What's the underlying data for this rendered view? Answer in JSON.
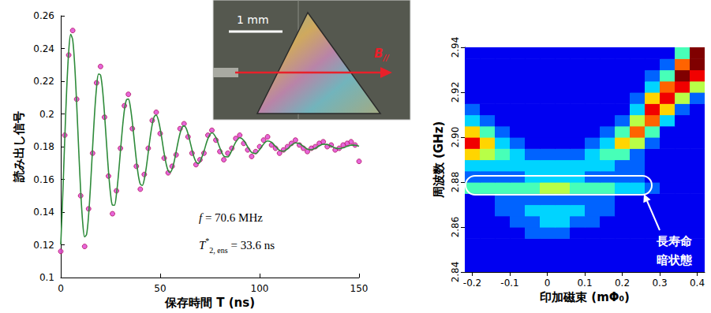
{
  "chart_data": [
    {
      "type": "line",
      "x_label": "保存時間 T (ns)",
      "y_label": "読み出し信号",
      "xlim": [
        0,
        150
      ],
      "xticks": [
        0,
        50,
        100,
        150
      ],
      "ylim": [
        0.1,
        0.26
      ],
      "yticks": [
        0.1,
        0.12,
        0.14,
        0.16,
        0.18,
        0.2,
        0.22,
        0.24,
        0.26
      ],
      "grid": false,
      "annotations": [
        {
          "parts": [
            {
              "text": "f",
              "style": "italic"
            },
            {
              "text": " = 70.6 MHz"
            }
          ]
        },
        {
          "parts": [
            {
              "text": "T",
              "style": "italic"
            },
            {
              "text": "*",
              "style": "sup"
            },
            {
              "text": "2, ens",
              "style": "sub"
            },
            {
              "text": " = 33.6 ns"
            }
          ]
        }
      ],
      "series": [
        {
          "type": "scatter",
          "color": "#e040d0",
          "marker": "circle",
          "x": [
            0,
            2,
            4,
            6,
            8,
            10,
            12,
            14,
            16,
            18,
            20,
            22,
            24,
            26,
            28,
            30,
            32,
            34,
            36,
            38,
            40,
            42,
            44,
            46,
            48,
            50,
            52,
            54,
            56,
            58,
            60,
            62,
            64,
            66,
            68,
            70,
            72,
            74,
            76,
            78,
            80,
            82,
            84,
            86,
            88,
            90,
            92,
            94,
            96,
            98,
            100,
            102,
            104,
            106,
            108,
            110,
            112,
            114,
            116,
            118,
            120,
            122,
            124,
            126,
            128,
            130,
            132,
            134,
            136,
            138,
            140,
            142,
            144,
            146,
            148,
            150
          ],
          "values": [
            0.116,
            0.187,
            0.236,
            0.251,
            0.209,
            0.15,
            0.119,
            0.142,
            0.176,
            0.219,
            0.229,
            0.198,
            0.162,
            0.139,
            0.153,
            0.179,
            0.205,
            0.212,
            0.191,
            0.168,
            0.154,
            0.163,
            0.179,
            0.196,
            0.201,
            0.188,
            0.173,
            0.164,
            0.168,
            0.175,
            0.191,
            0.194,
            0.186,
            0.176,
            0.169,
            0.172,
            0.176,
            0.187,
            0.19,
            0.184,
            0.177,
            0.172,
            0.176,
            0.179,
            0.185,
            0.187,
            0.182,
            0.178,
            0.174,
            0.177,
            0.18,
            0.184,
            0.186,
            0.181,
            0.179,
            0.176,
            0.178,
            0.18,
            0.182,
            0.184,
            0.181,
            0.179,
            0.177,
            0.179,
            0.18,
            0.182,
            0.183,
            0.18,
            0.181,
            0.178,
            0.179,
            0.181,
            0.182,
            0.183,
            0.181,
            0.171
          ]
        },
        {
          "type": "line",
          "color": "#2e8b3a",
          "line_style": "solid",
          "x": [
            0,
            1,
            2,
            3,
            4,
            5,
            6,
            7,
            8,
            9,
            10,
            11,
            12,
            13,
            14,
            15,
            16,
            17,
            18,
            19,
            20,
            21,
            22,
            23,
            24,
            25,
            26,
            27,
            28,
            29,
            30,
            31,
            32,
            33,
            34,
            35,
            36,
            37,
            38,
            39,
            40,
            41,
            42,
            43,
            44,
            45,
            46,
            47,
            48,
            49,
            50,
            51,
            52,
            53,
            54,
            55,
            56,
            57,
            58,
            59,
            60,
            61,
            62,
            63,
            64,
            65,
            66,
            67,
            68,
            69,
            70,
            72,
            74,
            76,
            78,
            80,
            82,
            84,
            86,
            88,
            90,
            92,
            94,
            96,
            98,
            100,
            102,
            104,
            106,
            108,
            110,
            112,
            114,
            116,
            118,
            120,
            122,
            124,
            126,
            128,
            130,
            132,
            134,
            136,
            138,
            140,
            142,
            144,
            146,
            148,
            150
          ],
          "values": [
            0.1202,
            0.1503,
            0.1843,
            0.2155,
            0.2382,
            0.2486,
            0.2454,
            0.23,
            0.2061,
            0.1788,
            0.1532,
            0.1341,
            0.1248,
            0.1264,
            0.1381,
            0.157,
            0.1792,
            0.2002,
            0.2162,
            0.2244,
            0.2238,
            0.215,
            0.2,
            0.1821,
            0.1649,
            0.1515,
            0.1443,
            0.1442,
            0.1509,
            0.1627,
            0.1771,
            0.1911,
            0.2023,
            0.2086,
            0.2091,
            0.2042,
            0.1949,
            0.1834,
            0.1719,
            0.1625,
            0.1571,
            0.1563,
            0.16,
            0.1672,
            0.1765,
            0.1859,
            0.1936,
            0.1983,
            0.1993,
            0.1966,
            0.1909,
            0.1835,
            0.1758,
            0.1695,
            0.1653,
            0.1643,
            0.1663,
            0.1707,
            0.1767,
            0.1829,
            0.1882,
            0.1917,
            0.1927,
            0.1914,
            0.1879,
            0.1831,
            0.1781,
            0.1736,
            0.1708,
            0.1697,
            0.1707,
            0.1772,
            0.1849,
            0.1884,
            0.1856,
            0.1793,
            0.1742,
            0.1737,
            0.1777,
            0.1828,
            0.1854,
            0.1839,
            0.1799,
            0.1764,
            0.1758,
            0.1782,
            0.1816,
            0.1835,
            0.1827,
            0.1801,
            0.1778,
            0.1772,
            0.1786,
            0.1809,
            0.1823,
            0.1819,
            0.1802,
            0.1786,
            0.1781,
            0.179,
            0.1805,
            0.1815,
            0.1813,
            0.1803,
            0.1792,
            0.1788,
            0.1793,
            0.1802,
            0.1809,
            0.1809,
            0.1802
          ]
        }
      ]
    },
    {
      "type": "heatmap",
      "x_label": "印加磁束 (mΦ₀)",
      "y_label": "周波数 (GHz)",
      "xlim": [
        -0.22,
        0.42
      ],
      "xticks": [
        -0.2,
        -0.1,
        0,
        0.1,
        0.2,
        0.3,
        0.4
      ],
      "ylim": [
        2.84,
        2.94
      ],
      "yticks": [
        2.84,
        2.86,
        2.88,
        {
          "value": 2.9,
          "label": "2.90"
        },
        2.92,
        2.94
      ],
      "grid": false,
      "annotations": [
        {
          "text": "長寿命\n暗状態"
        }
      ],
      "x": [
        -0.2,
        -0.16,
        -0.12,
        -0.08,
        -0.04,
        0,
        0.04,
        0.08,
        0.12,
        0.16,
        0.2,
        0.24,
        0.28,
        0.32,
        0.36,
        0.4
      ],
      "y": [
        2.8425,
        2.8475,
        2.8525,
        2.8575,
        2.8625,
        2.8675,
        2.8725,
        2.8775,
        2.8825,
        2.8875,
        2.8925,
        2.8975,
        2.9025,
        2.9075,
        2.9125,
        2.9175,
        2.9225,
        2.9275,
        2.9325,
        2.9375
      ],
      "cells": [
        [
          1,
          1,
          1,
          1,
          1,
          1,
          1,
          1,
          1,
          1,
          1,
          1,
          1,
          1,
          1,
          1
        ],
        [
          1,
          1,
          1,
          1,
          1,
          1,
          1,
          1,
          1,
          1,
          1,
          1,
          1,
          1,
          1,
          1
        ],
        [
          1,
          1,
          1,
          1,
          1,
          1,
          1,
          1,
          1,
          1,
          1,
          1,
          1,
          1,
          1,
          1
        ],
        [
          1,
          1,
          1,
          1,
          2,
          2,
          2,
          1,
          1,
          1,
          1,
          1,
          1,
          1,
          1,
          1
        ],
        [
          1,
          1,
          1,
          2,
          2,
          3,
          3,
          2,
          2,
          1,
          1,
          1,
          1,
          1,
          1,
          1
        ],
        [
          1,
          1,
          2,
          2,
          3,
          3,
          3,
          3,
          2,
          2,
          1,
          1,
          1,
          1,
          1,
          1
        ],
        [
          1,
          1,
          2,
          2,
          2,
          2,
          2,
          2,
          2,
          2,
          1,
          1,
          1,
          1,
          1,
          1
        ],
        [
          4,
          4,
          4,
          4,
          4,
          5,
          5,
          4,
          4,
          4,
          3,
          3,
          2,
          1,
          1,
          1
        ],
        [
          2,
          2,
          2,
          2,
          3,
          3,
          3,
          3,
          2,
          2,
          2,
          2,
          1,
          1,
          1,
          1
        ],
        [
          3,
          3,
          3,
          3,
          3,
          3,
          3,
          3,
          3,
          3,
          2,
          2,
          1,
          1,
          1,
          1
        ],
        [
          6,
          5,
          4,
          3,
          2,
          2,
          2,
          2,
          3,
          4,
          4,
          2,
          1,
          1,
          1,
          1
        ],
        [
          8,
          6,
          3,
          2,
          1,
          1,
          1,
          1,
          2,
          3,
          6,
          5,
          2,
          1,
          1,
          1
        ],
        [
          6,
          4,
          2,
          1,
          1,
          1,
          1,
          1,
          1,
          2,
          4,
          7,
          4,
          1,
          1,
          1
        ],
        [
          3,
          2,
          1,
          1,
          1,
          1,
          1,
          1,
          1,
          1,
          2,
          5,
          7,
          3,
          1,
          1
        ],
        [
          2,
          1,
          1,
          1,
          1,
          1,
          1,
          1,
          1,
          1,
          1,
          3,
          8,
          6,
          2,
          1
        ],
        [
          1,
          1,
          1,
          1,
          1,
          1,
          1,
          1,
          1,
          1,
          1,
          2,
          6,
          8,
          5,
          2
        ],
        [
          1,
          1,
          1,
          1,
          1,
          1,
          1,
          1,
          1,
          1,
          1,
          1,
          3,
          7,
          8,
          5
        ],
        [
          1,
          1,
          1,
          1,
          1,
          1,
          1,
          1,
          1,
          1,
          1,
          1,
          2,
          4,
          9,
          8
        ],
        [
          1,
          1,
          1,
          1,
          1,
          1,
          1,
          1,
          1,
          1,
          1,
          1,
          1,
          2,
          7,
          9
        ],
        [
          1,
          1,
          1,
          1,
          1,
          1,
          1,
          1,
          1,
          1,
          1,
          1,
          1,
          1,
          4,
          9
        ]
      ]
    }
  ],
  "inset": {
    "scale_bar": "1 mm",
    "field_label": {
      "text": "B",
      "sub": "//"
    }
  }
}
